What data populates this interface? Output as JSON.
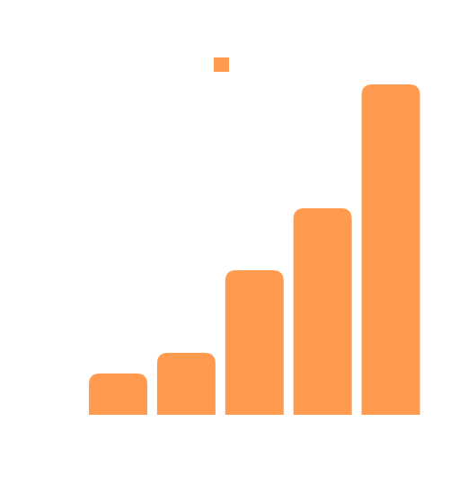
{
  "chart_data": {
    "type": "bar",
    "categories": [
      "",
      "",
      "",
      "",
      ""
    ],
    "values": [
      1,
      1.5,
      3.5,
      5,
      8
    ],
    "ylim": [
      0,
      8
    ],
    "grid": false,
    "legend": {
      "position": "top-center",
      "entries": [
        {
          "name": "",
          "color": "#ff9a4f"
        }
      ]
    },
    "series": [
      {
        "name": "",
        "color": "#ff9a4f",
        "values": [
          1,
          1.5,
          3.5,
          5,
          8
        ]
      }
    ]
  }
}
